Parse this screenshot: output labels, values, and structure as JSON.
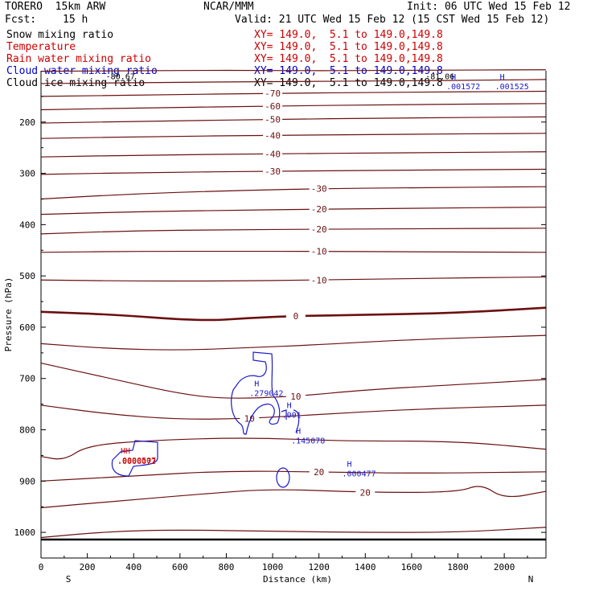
{
  "header": {
    "model": "TORERO  15km ARW",
    "center": "NCAR/MMM",
    "init": "Init: 06 UTC Wed 15 Feb 12",
    "fcst_label": "Fcst:",
    "fcst_value": "15 h",
    "valid": "Valid: 21 UTC Wed 15 Feb 12 (15 CST Wed 15 Feb 12)"
  },
  "legend": [
    {
      "name": "Snow mixing ratio",
      "color": "#000000",
      "xy": "XY= 149.0,  5.1 to 149.0,149.8",
      "xy_color": "#cc0000"
    },
    {
      "name": "Temperature",
      "color": "#cc0000",
      "xy": "XY= 149.0,  5.1 to 149.0,149.8",
      "xy_color": "#cc0000"
    },
    {
      "name": "Rain water mixing ratio",
      "color": "#cc0000",
      "xy": "XY= 149.0,  5.1 to 149.0,149.8",
      "xy_color": "#cc0000"
    },
    {
      "name": "Cloud water mixing ratio",
      "color": "#0000cc",
      "xy": "XY= 149.0,  5.1 to 149.0,149.8",
      "xy_color": "#0000cc"
    },
    {
      "name": "Cloud ice mixing ratio",
      "color": "#000000",
      "xy": "XY= 149.0,  5.1 to 149.0,149.8",
      "xy_color": "#000000"
    }
  ],
  "chart_data": {
    "type": "line",
    "title": "",
    "xlabel": "Distance (km)",
    "ylabel": "Pressure (hPa)",
    "xlim": [
      0,
      2180
    ],
    "ylim": [
      1050,
      100
    ],
    "x_ticks": [
      0,
      200,
      400,
      600,
      800,
      1000,
      1200,
      1400,
      1600,
      1800,
      2000
    ],
    "y_ticks": [
      200,
      300,
      400,
      500,
      600,
      700,
      800,
      900,
      1000
    ],
    "x_endpoints": {
      "left": "S",
      "right": "N"
    },
    "colors": {
      "temperature": "#6b1010",
      "cloud_water": "#1a1acc",
      "rain": "#cc0000",
      "frame": "#000000"
    },
    "temperature_isotherms": [
      {
        "label": "",
        "points": [
          [
            0,
            101
          ],
          [
            400,
            100
          ],
          [
            800,
            99
          ],
          [
            1200,
            100
          ],
          [
            1600,
            99
          ],
          [
            2180,
            98
          ]
        ]
      },
      {
        "label": "",
        "points": [
          [
            0,
            125
          ],
          [
            500,
            123
          ],
          [
            1000,
            121
          ],
          [
            1500,
            120
          ],
          [
            2000,
            118
          ],
          [
            2180,
            117
          ]
        ]
      },
      {
        "label": "-70",
        "points": [
          [
            0,
            150
          ],
          [
            500,
            147
          ],
          [
            1000,
            144
          ],
          [
            1500,
            142
          ],
          [
            2180,
            140
          ]
        ]
      },
      {
        "label": "-60",
        "points": [
          [
            0,
            176
          ],
          [
            500,
            172
          ],
          [
            1000,
            169
          ],
          [
            1500,
            166
          ],
          [
            2180,
            164
          ]
        ]
      },
      {
        "label": "-50",
        "points": [
          [
            0,
            202
          ],
          [
            500,
            198
          ],
          [
            1000,
            195
          ],
          [
            1500,
            192
          ],
          [
            2180,
            190
          ]
        ]
      },
      {
        "label": "-40",
        "points": [
          [
            0,
            232
          ],
          [
            500,
            228
          ],
          [
            1000,
            226
          ],
          [
            1500,
            224
          ],
          [
            2180,
            222
          ]
        ]
      },
      {
        "label": "-40",
        "points": [
          [
            0,
            268
          ],
          [
            500,
            264
          ],
          [
            1000,
            262
          ],
          [
            1500,
            260
          ],
          [
            2180,
            258
          ]
        ]
      },
      {
        "label": "-30",
        "points": [
          [
            0,
            302
          ],
          [
            500,
            298
          ],
          [
            1000,
            296
          ],
          [
            1500,
            294
          ],
          [
            2180,
            292
          ]
        ]
      },
      {
        "label": "-30",
        "points": [
          [
            0,
            350
          ],
          [
            400,
            340
          ],
          [
            800,
            334
          ],
          [
            1200,
            330
          ],
          [
            1600,
            328
          ],
          [
            2180,
            326
          ]
        ]
      },
      {
        "label": "-20",
        "points": [
          [
            0,
            380
          ],
          [
            400,
            375
          ],
          [
            800,
            372
          ],
          [
            1200,
            370
          ],
          [
            1600,
            368
          ],
          [
            2180,
            366
          ]
        ]
      },
      {
        "label": "-20",
        "points": [
          [
            0,
            418
          ],
          [
            400,
            412
          ],
          [
            800,
            410
          ],
          [
            1200,
            409
          ],
          [
            1600,
            408
          ],
          [
            2180,
            407
          ]
        ]
      },
      {
        "label": "-10",
        "points": [
          [
            0,
            454
          ],
          [
            400,
            452
          ],
          [
            800,
            452
          ],
          [
            1200,
            452
          ],
          [
            1600,
            453
          ],
          [
            2180,
            454
          ]
        ]
      },
      {
        "label": "-10",
        "points": [
          [
            0,
            508
          ],
          [
            400,
            510
          ],
          [
            800,
            510
          ],
          [
            1200,
            508
          ],
          [
            1600,
            505
          ],
          [
            2180,
            502
          ]
        ]
      },
      {
        "label": "0",
        "points": [
          [
            0,
            570
          ],
          [
            300,
            575
          ],
          [
            700,
            588
          ],
          [
            900,
            582
          ],
          [
            1100,
            578
          ],
          [
            1400,
            576
          ],
          [
            1800,
            572
          ],
          [
            2180,
            562
          ]
        ]
      },
      {
        "label": "",
        "points": [
          [
            0,
            632
          ],
          [
            300,
            642
          ],
          [
            600,
            645
          ],
          [
            900,
            640
          ],
          [
            1200,
            634
          ],
          [
            1600,
            624
          ],
          [
            2180,
            616
          ]
        ]
      },
      {
        "label": "10",
        "points": [
          [
            0,
            670
          ],
          [
            300,
            700
          ],
          [
            600,
            730
          ],
          [
            800,
            740
          ],
          [
            1100,
            735
          ],
          [
            1400,
            722
          ],
          [
            1800,
            712
          ],
          [
            2180,
            702
          ]
        ]
      },
      {
        "label": "10",
        "points": [
          [
            0,
            752
          ],
          [
            300,
            770
          ],
          [
            600,
            780
          ],
          [
            900,
            778
          ],
          [
            1200,
            770
          ],
          [
            1600,
            760
          ],
          [
            2180,
            752
          ]
        ]
      },
      {
        "label": "",
        "points": [
          [
            0,
            852
          ],
          [
            100,
            860
          ],
          [
            200,
            830
          ],
          [
            500,
            820
          ],
          [
            900,
            815
          ],
          [
            1300,
            822
          ],
          [
            1800,
            822
          ],
          [
            2180,
            838
          ]
        ]
      },
      {
        "label": "20",
        "points": [
          [
            0,
            900
          ],
          [
            400,
            890
          ],
          [
            800,
            880
          ],
          [
            1200,
            882
          ],
          [
            1600,
            885
          ],
          [
            2180,
            882
          ]
        ]
      },
      {
        "label": "20",
        "points": [
          [
            0,
            952
          ],
          [
            300,
            940
          ],
          [
            700,
            925
          ],
          [
            1000,
            915
          ],
          [
            1400,
            922
          ],
          [
            1800,
            922
          ],
          [
            1900,
            905
          ],
          [
            2000,
            935
          ],
          [
            2180,
            920
          ]
        ]
      },
      {
        "label": "",
        "points": [
          [
            0,
            1010
          ],
          [
            300,
            998
          ],
          [
            600,
            995
          ],
          [
            1000,
            998
          ],
          [
            1400,
            1000
          ],
          [
            1800,
            1000
          ],
          [
            2180,
            990
          ]
        ]
      }
    ],
    "cloud_water_maxima": [
      {
        "x": 900,
        "p": 728,
        "value": ".279042"
      },
      {
        "x": 1040,
        "p": 770,
        "value": ".001"
      },
      {
        "x": 1080,
        "p": 820,
        "value": ".145078"
      },
      {
        "x": 1300,
        "p": 885,
        "value": ".000477"
      },
      {
        "x": 1750,
        "p": 130,
        "value": ".001572"
      },
      {
        "x": 1960,
        "p": 130,
        "value": ".001525"
      }
    ],
    "rain_maxima": [
      {
        "x": 330,
        "p": 868,
        "value": ".0000507"
      },
      {
        "x": 380,
        "p": 875,
        "value": ".0000072"
      }
    ],
    "other_labels": [
      {
        "x": 280,
        "p": 110,
        "value": "-80.67"
      },
      {
        "x": 1660,
        "p": 110,
        "value": "-81.06"
      }
    ]
  }
}
